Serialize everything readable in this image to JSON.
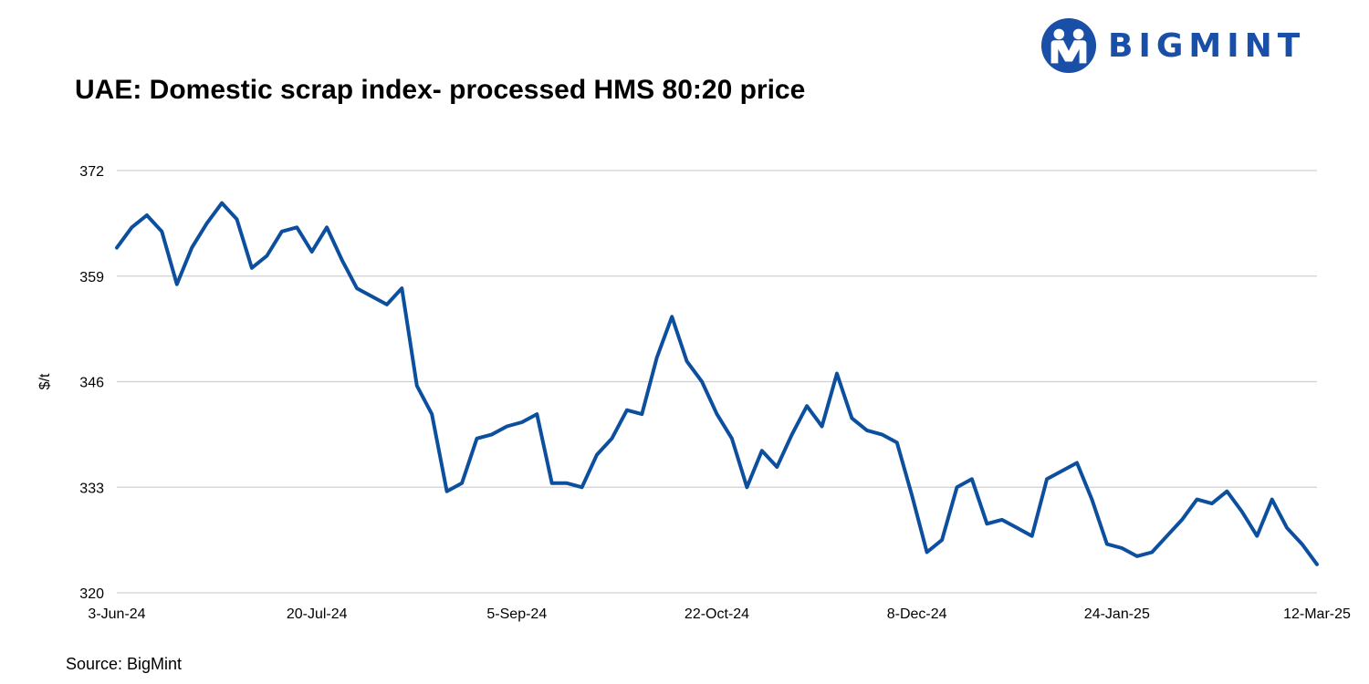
{
  "brand": {
    "name": "BIGMINT",
    "logo": "bigmint-logo-icon",
    "color": "#1a4fa8"
  },
  "chart_data": {
    "type": "line",
    "title": "UAE: Domestic scrap index- processed HMS 80:20 price",
    "xlabel": "",
    "ylabel": "$/t",
    "ylim": [
      320,
      372
    ],
    "yticks": [
      "372",
      "359",
      "346",
      "333",
      "320"
    ],
    "xticks": [
      "3-Jun-24",
      "20-Jul-24",
      "5-Sep-24",
      "22-Oct-24",
      "8-Dec-24",
      "24-Jan-25",
      "12-Mar-25"
    ],
    "grid": true,
    "line_color": "#0d4f9f",
    "series": [
      {
        "name": "Processed HMS 80:20 price",
        "values": [
          362.5,
          365.0,
          366.5,
          364.5,
          358.0,
          362.5,
          365.5,
          368.0,
          366.0,
          360.0,
          361.5,
          364.5,
          365.0,
          362.0,
          365.0,
          361.0,
          357.5,
          356.5,
          355.5,
          357.5,
          345.5,
          342.0,
          332.5,
          333.5,
          339.0,
          339.5,
          340.5,
          341.0,
          342.0,
          333.5,
          333.5,
          333.0,
          337.0,
          339.0,
          342.5,
          342.0,
          349.0,
          354.0,
          348.5,
          346.0,
          342.0,
          339.0,
          333.0,
          337.5,
          335.5,
          339.5,
          343.0,
          340.5,
          347.0,
          341.5,
          340.0,
          339.5,
          338.5,
          332.0,
          325.0,
          326.5,
          333.0,
          334.0,
          328.5,
          329.0,
          328.0,
          327.0,
          334.0,
          335.0,
          336.0,
          331.5,
          326.0,
          325.5,
          324.5,
          325.0,
          327.0,
          329.0,
          331.5,
          331.0,
          332.5,
          330.0,
          327.0,
          331.5,
          328.0,
          326.0,
          323.5
        ]
      }
    ]
  },
  "footer": {
    "source": "Source: BigMint"
  }
}
